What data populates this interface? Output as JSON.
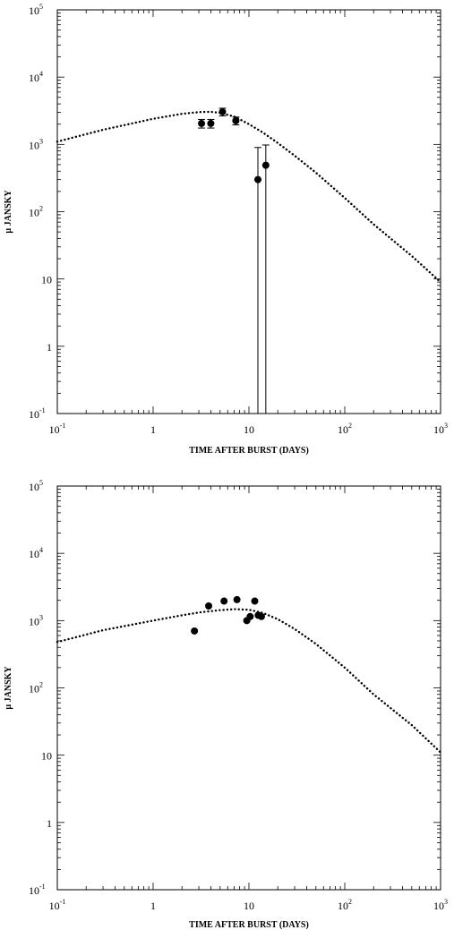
{
  "chart_data": [
    {
      "type": "scatter",
      "title": "",
      "xlabel": "TIME AFTER BURST (DAYS)",
      "ylabel": "µ JANSKY",
      "xscale": "log",
      "yscale": "log",
      "xlim": [
        0.1,
        1000
      ],
      "ylim": [
        0.1,
        100000
      ],
      "grid": false,
      "legend": "none",
      "xticks": [
        {
          "value": 0.1,
          "base": "10",
          "exp": "-1"
        },
        {
          "value": 1,
          "base": "1",
          "exp": ""
        },
        {
          "value": 10,
          "base": "10",
          "exp": ""
        },
        {
          "value": 100,
          "base": "10",
          "exp": "2"
        },
        {
          "value": 1000,
          "base": "10",
          "exp": "3"
        }
      ],
      "yticks": [
        {
          "value": 0.1,
          "base": "10",
          "exp": "-1"
        },
        {
          "value": 1,
          "base": "1",
          "exp": ""
        },
        {
          "value": 10,
          "base": "10",
          "exp": ""
        },
        {
          "value": 100,
          "base": "10",
          "exp": "2"
        },
        {
          "value": 1000,
          "base": "10",
          "exp": "3"
        },
        {
          "value": 10000,
          "base": "10",
          "exp": "4"
        },
        {
          "value": 100000,
          "base": "10",
          "exp": "5"
        }
      ],
      "series": [
        {
          "kind": "points",
          "x": [
            3.2,
            4.0,
            5.3,
            7.3,
            12.4,
            15.0
          ],
          "y": [
            2050,
            2050,
            3050,
            2250,
            300,
            490
          ],
          "yerr_low": [
            1750,
            1750,
            2650,
            1950,
            0.1,
            0.1
          ],
          "yerr_high": [
            2350,
            2350,
            3450,
            2550,
            900,
            980
          ]
        },
        {
          "kind": "model",
          "style": "dotted",
          "x": [
            0.1,
            0.3,
            1,
            2,
            3,
            4,
            5,
            7,
            10,
            14,
            20,
            30,
            50,
            100,
            200,
            500,
            1000
          ],
          "y": [
            1100,
            1650,
            2400,
            2850,
            3020,
            3050,
            2950,
            2600,
            2000,
            1500,
            1050,
            680,
            380,
            160,
            65,
            22,
            9
          ]
        }
      ]
    },
    {
      "type": "scatter",
      "title": "",
      "xlabel": "TIME AFTER BURST (DAYS)",
      "ylabel": "µ JANSKY",
      "xscale": "log",
      "yscale": "log",
      "xlim": [
        0.1,
        1000
      ],
      "ylim": [
        0.1,
        100000
      ],
      "grid": false,
      "legend": "none",
      "xticks": [
        {
          "value": 0.1,
          "base": "10",
          "exp": "-1"
        },
        {
          "value": 1,
          "base": "1",
          "exp": ""
        },
        {
          "value": 10,
          "base": "10",
          "exp": ""
        },
        {
          "value": 100,
          "base": "10",
          "exp": "2"
        },
        {
          "value": 1000,
          "base": "10",
          "exp": "3"
        }
      ],
      "yticks": [
        {
          "value": 0.1,
          "base": "10",
          "exp": "-1"
        },
        {
          "value": 1,
          "base": "1",
          "exp": ""
        },
        {
          "value": 10,
          "base": "10",
          "exp": ""
        },
        {
          "value": 100,
          "base": "10",
          "exp": "2"
        },
        {
          "value": 1000,
          "base": "10",
          "exp": "3"
        },
        {
          "value": 10000,
          "base": "10",
          "exp": "4"
        },
        {
          "value": 100000,
          "base": "10",
          "exp": "5"
        }
      ],
      "series": [
        {
          "kind": "points",
          "x": [
            2.7,
            3.8,
            5.5,
            7.5,
            9.5,
            10.3,
            11.5,
            12.5,
            13.5
          ],
          "y": [
            700,
            1650,
            1950,
            2050,
            1000,
            1150,
            1950,
            1200,
            1150
          ]
        },
        {
          "kind": "model",
          "style": "dotted",
          "x": [
            0.1,
            0.3,
            1,
            2,
            3,
            5,
            7,
            10,
            14,
            20,
            30,
            50,
            100,
            200,
            500,
            1000
          ],
          "y": [
            480,
            720,
            1000,
            1200,
            1320,
            1430,
            1480,
            1450,
            1300,
            1050,
            750,
            450,
            200,
            80,
            28,
            11
          ]
        }
      ]
    }
  ]
}
